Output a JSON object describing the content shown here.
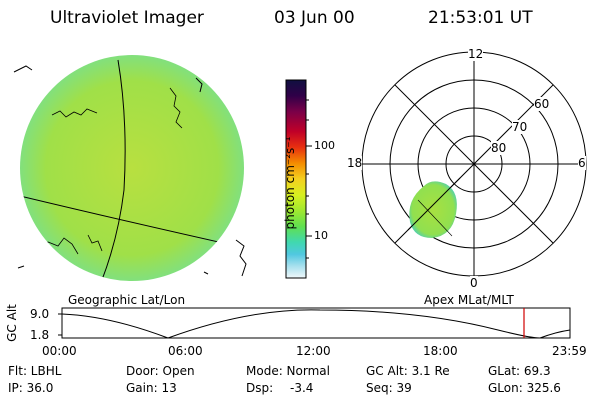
{
  "header": {
    "instrument": "Ultraviolet Imager",
    "date": "03 Jun 00",
    "time": "21:53:01 UT"
  },
  "colorbar": {
    "unit_label": "photon cm⁻²s⁻¹",
    "ticks": [
      "100",
      "10"
    ],
    "colors": [
      "#1a0a3a",
      "#2a0040",
      "#6a0050",
      "#a00030",
      "#d01818",
      "#f06010",
      "#f4a000",
      "#f4e020",
      "#c8f020",
      "#80e840",
      "#40d8a0",
      "#40c0e0",
      "#a0e0f0",
      "#e0f0f8"
    ]
  },
  "geographic_panel": {
    "caption": "Geographic Lat/Lon",
    "disk_color": "#a8e048"
  },
  "polar_panel": {
    "caption": "Apex MLat/MLT",
    "mlt_labels": {
      "top": "12",
      "left": "18",
      "right": "6",
      "bottom": "0"
    },
    "lat_labels": [
      "60",
      "70",
      "80"
    ]
  },
  "orbit_plot": {
    "ylabel": "GC Alt",
    "y_ticks": [
      "9.0",
      "1.8"
    ],
    "x_ticks": [
      "00:00",
      "06:00",
      "12:00",
      "18:00",
      "23:59"
    ],
    "marker_color": "#d00000"
  },
  "footer": {
    "row1": {
      "flt": "Flt: LBHL",
      "door": "Door: Open",
      "mode": "Mode: Normal",
      "gcalt": "GC Alt: 3.1 Re",
      "glat": "GLat: 69.3"
    },
    "row2": {
      "ip": "IP: 36.0",
      "gain": "Gain: 13",
      "dsp_label": "Dsp:",
      "dsp_value": "-3.4",
      "seq": "Seq: 39",
      "glon": "GLon: 325.6"
    }
  }
}
